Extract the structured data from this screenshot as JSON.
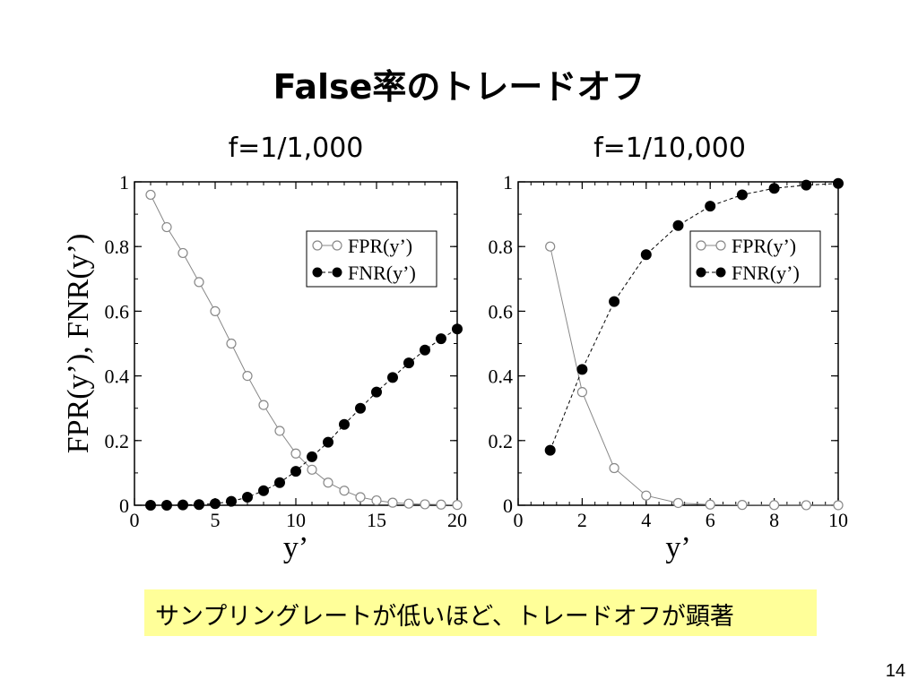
{
  "slide": {
    "title": "False率のトレードオフ",
    "callout": "サンプリングレートが低いほど、トレードオフが顕著",
    "page_number": "14"
  },
  "chart_data": [
    {
      "type": "line",
      "title": "f=1/1,000",
      "xlabel": "y’",
      "ylabel": "FPR(y’), FNR(y’)",
      "xlim": [
        0,
        20
      ],
      "ylim": [
        0,
        1
      ],
      "xticks": [
        0,
        5,
        10,
        15,
        20
      ],
      "yticks": [
        0,
        0.2,
        0.4,
        0.6,
        0.8,
        1
      ],
      "xtick_labels": [
        "0",
        "5",
        "10",
        "15",
        "20"
      ],
      "ytick_labels": [
        "0",
        "0.2",
        "0.4",
        "0.6",
        "0.8",
        "1"
      ],
      "legend_position": "top-right",
      "grid": false,
      "x": [
        1,
        2,
        3,
        4,
        5,
        6,
        7,
        8,
        9,
        10,
        11,
        12,
        13,
        14,
        15,
        16,
        17,
        18,
        19,
        20
      ],
      "series": [
        {
          "name": "FPR(y’)",
          "marker": "open-circle",
          "line": "solid",
          "color": "#888888",
          "values": [
            0.96,
            0.86,
            0.78,
            0.69,
            0.6,
            0.5,
            0.4,
            0.31,
            0.23,
            0.16,
            0.11,
            0.07,
            0.045,
            0.025,
            0.015,
            0.008,
            0.005,
            0.003,
            0.002,
            0.001
          ]
        },
        {
          "name": "FNR(y’)",
          "marker": "filled-circle",
          "line": "dashed",
          "color": "#000000",
          "values": [
            0,
            0,
            0.001,
            0.002,
            0.005,
            0.012,
            0.025,
            0.045,
            0.07,
            0.105,
            0.15,
            0.195,
            0.25,
            0.3,
            0.35,
            0.395,
            0.44,
            0.48,
            0.515,
            0.545
          ]
        }
      ]
    },
    {
      "type": "line",
      "title": "f=1/10,000",
      "xlabel": "y’",
      "ylabel": "",
      "xlim": [
        0,
        10
      ],
      "ylim": [
        0,
        1
      ],
      "xticks": [
        0,
        2,
        4,
        6,
        8,
        10
      ],
      "yticks": [
        0,
        0.2,
        0.4,
        0.6,
        0.8,
        1
      ],
      "xtick_labels": [
        "0",
        "2",
        "4",
        "6",
        "8",
        "10"
      ],
      "ytick_labels": [
        "0",
        "0.2",
        "0.4",
        "0.6",
        "0.8",
        "1"
      ],
      "legend_position": "top-right",
      "grid": false,
      "x": [
        1,
        2,
        3,
        4,
        5,
        6,
        7,
        8,
        9,
        10
      ],
      "series": [
        {
          "name": "FPR(y’)",
          "marker": "open-circle",
          "line": "solid",
          "color": "#888888",
          "values": [
            0.8,
            0.35,
            0.115,
            0.03,
            0.007,
            0.002,
            0.001,
            0.0005,
            0.0002,
            0.0001
          ]
        },
        {
          "name": "FNR(y’)",
          "marker": "filled-circle",
          "line": "dashed",
          "color": "#000000",
          "values": [
            0.17,
            0.42,
            0.63,
            0.775,
            0.865,
            0.925,
            0.96,
            0.98,
            0.99,
            0.995
          ]
        }
      ]
    }
  ]
}
